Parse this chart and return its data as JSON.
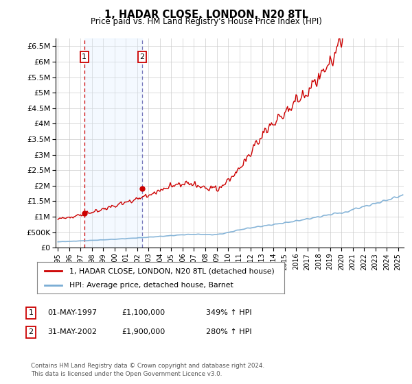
{
  "title": "1, HADAR CLOSE, LONDON, N20 8TL",
  "subtitle": "Price paid vs. HM Land Registry's House Price Index (HPI)",
  "purchase_dates": [
    1997.33,
    2002.42
  ],
  "purchase_prices": [
    1100000,
    1900000
  ],
  "purchase_labels": [
    "1",
    "2"
  ],
  "table_rows": [
    {
      "num": "1",
      "date": "01-MAY-1997",
      "price": "£1,100,000",
      "change": "349% ↑ HPI"
    },
    {
      "num": "2",
      "date": "31-MAY-2002",
      "price": "£1,900,000",
      "change": "280% ↑ HPI"
    }
  ],
  "legend_house": "1, HADAR CLOSE, LONDON, N20 8TL (detached house)",
  "legend_hpi": "HPI: Average price, detached house, Barnet",
  "footer": "Contains HM Land Registry data © Crown copyright and database right 2024.\nThis data is licensed under the Open Government Licence v3.0.",
  "house_color": "#cc0000",
  "hpi_color": "#7aadd4",
  "vline_color_1": "#cc0000",
  "vline_color_2": "#7777bb",
  "shade_color": "#ddeeff",
  "ylim": [
    0,
    6750000
  ],
  "yticks": [
    0,
    500000,
    1000000,
    1500000,
    2000000,
    2500000,
    3000000,
    3500000,
    4000000,
    4500000,
    5000000,
    5500000,
    6000000,
    6500000
  ],
  "xlim_start": 1994.8,
  "xlim_end": 2025.5,
  "grid_color": "#cccccc",
  "bg_color": "#ffffff",
  "plot_bg": "#ffffff"
}
